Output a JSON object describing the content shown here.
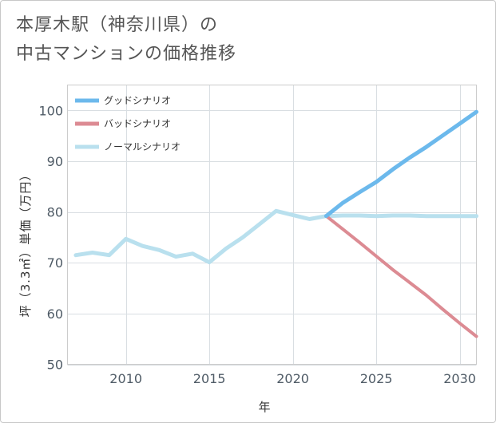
{
  "title": {
    "line1": "本厚木駅（神奈川県）の",
    "line2": "中古マンションの価格推移"
  },
  "chart_data": {
    "type": "line",
    "title": "本厚木駅（神奈川県）の中古マンションの価格推移",
    "xlabel": "年",
    "ylabel": "坪（3.3㎡）単価（万円）",
    "xlim": [
      2006.5,
      2031
    ],
    "ylim": [
      50,
      105
    ],
    "xticks": [
      2010,
      2015,
      2020,
      2025,
      2030
    ],
    "yticks": [
      50,
      60,
      70,
      80,
      90,
      100
    ],
    "grid": true,
    "legend_position": "top-left",
    "series": [
      {
        "name": "グッドシナリオ",
        "color": "#6cb9ec",
        "x": [
          2022,
          2023,
          2024,
          2025,
          2026,
          2027,
          2028,
          2029,
          2030,
          2031
        ],
        "values": [
          79.2,
          81.8,
          83.9,
          85.9,
          88.4,
          90.7,
          92.8,
          95.1,
          97.4,
          99.7
        ]
      },
      {
        "name": "バッドシナリオ",
        "color": "#dc8b93",
        "x": [
          2022,
          2023,
          2024,
          2025,
          2026,
          2027,
          2028,
          2029,
          2030,
          2031
        ],
        "values": [
          79.2,
          76.6,
          74.0,
          71.3,
          68.6,
          66.1,
          63.6,
          60.8,
          58.1,
          55.5
        ]
      },
      {
        "name": "ノーマルシナリオ",
        "color": "#b9e0ee",
        "x": [
          2007,
          2008,
          2009,
          2010,
          2011,
          2012,
          2013,
          2014,
          2015,
          2016,
          2017,
          2018,
          2019,
          2020,
          2021,
          2022,
          2023,
          2024,
          2025,
          2026,
          2027,
          2028,
          2029,
          2030,
          2031
        ],
        "values": [
          71.5,
          72.0,
          71.5,
          74.7,
          73.3,
          72.5,
          71.2,
          71.8,
          70.1,
          72.8,
          75.0,
          77.6,
          80.2,
          79.4,
          78.6,
          79.2,
          79.3,
          79.3,
          79.2,
          79.3,
          79.3,
          79.2,
          79.2,
          79.2,
          79.2
        ]
      }
    ]
  }
}
